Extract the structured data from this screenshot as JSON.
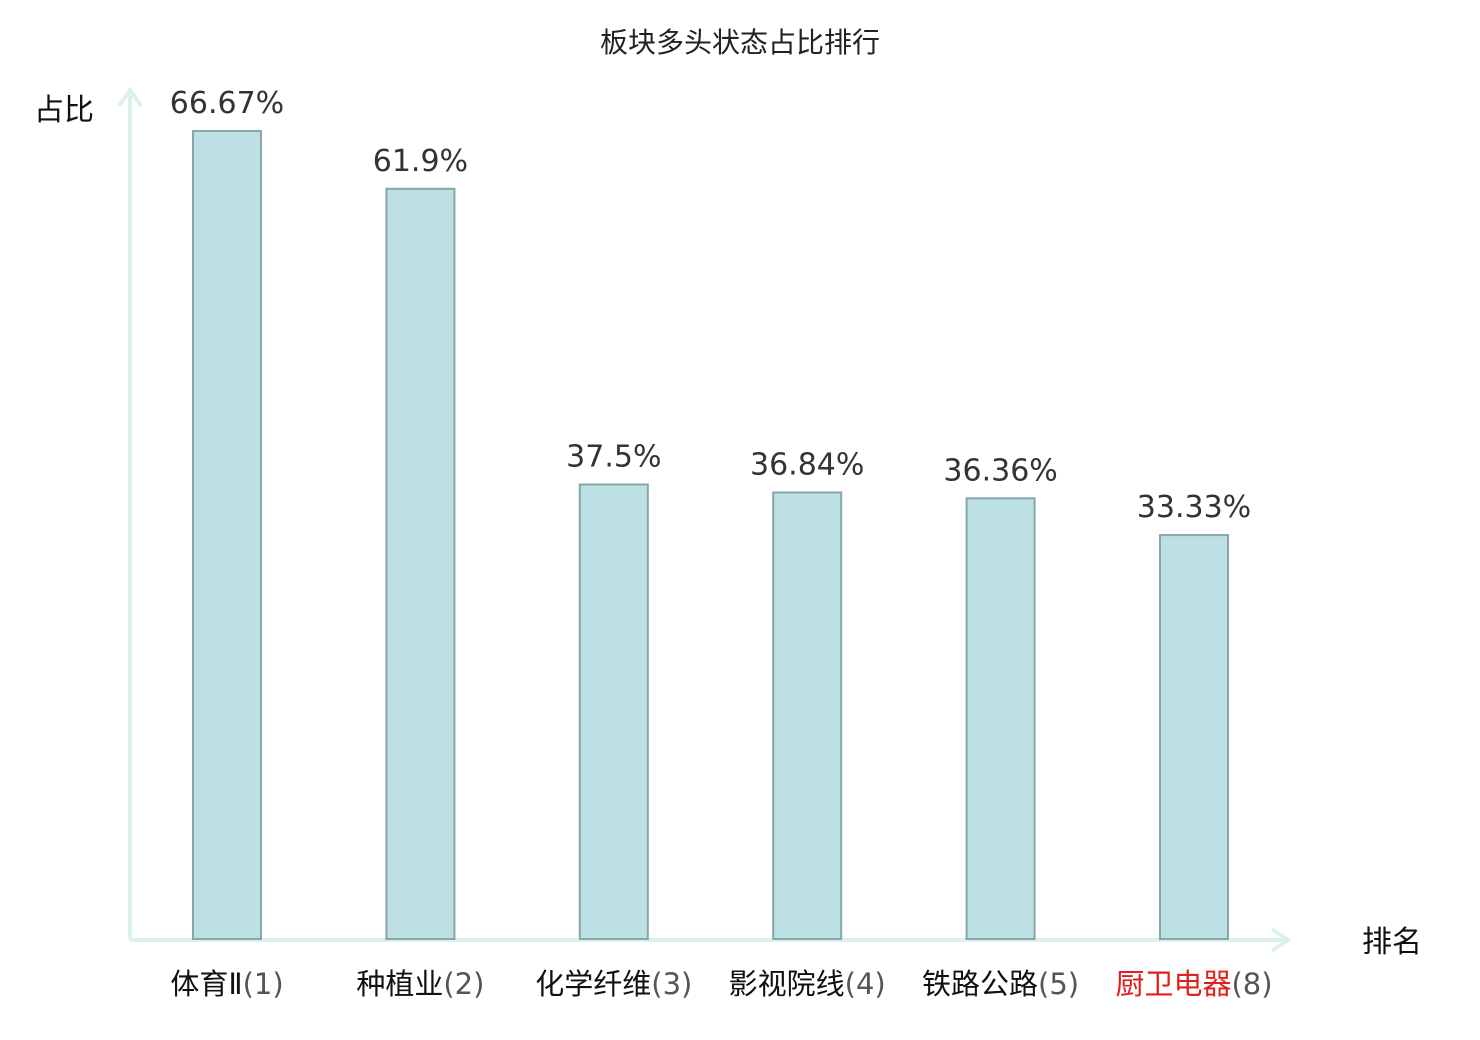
{
  "chart_data": {
    "type": "bar",
    "title": "板块多头状态占比排行",
    "xlabel": "排名",
    "ylabel": "占比",
    "categories": [
      "体育Ⅱ",
      "种植业",
      "化学纤维",
      "影视院线",
      "铁路公路",
      "厨卫电器"
    ],
    "ranks": [
      "(1)",
      "(2)",
      "(3)",
      "(4)",
      "(5)",
      "(8)"
    ],
    "values": [
      66.67,
      61.9,
      37.5,
      36.84,
      36.36,
      33.33
    ],
    "value_labels": [
      "66.67%",
      "61.9%",
      "37.5%",
      "36.84%",
      "36.36%",
      "33.33%"
    ],
    "highlight": [
      false,
      false,
      false,
      false,
      false,
      true
    ],
    "ylim": [
      0,
      66.67
    ],
    "grid": false,
    "legend": "none",
    "colors": {
      "bar_fill": "#bce0e3",
      "bar_stroke": "#86a6a9",
      "axis": "#dcf1ee",
      "highlight_text": "#e0201c",
      "text": "#111111"
    }
  }
}
